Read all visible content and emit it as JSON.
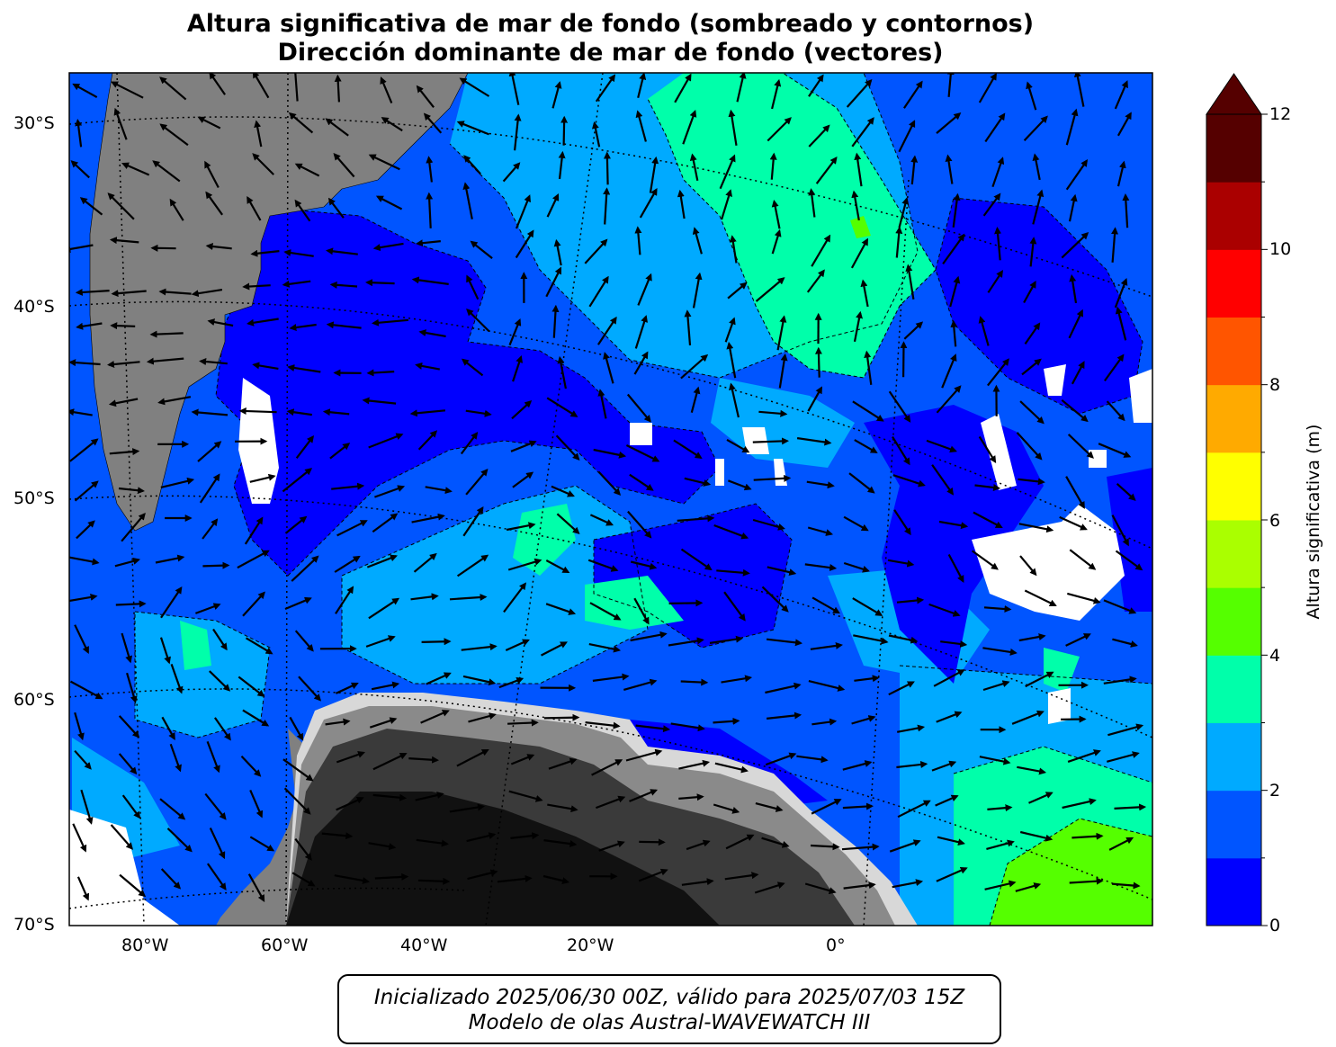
{
  "title_line1": "Altura significativa de mar de fondo (sombreado y contornos)",
  "title_line2": "Dirección dominante de mar de fondo (vectores)",
  "footer_line1": "Inicializado 2025/06/30 00Z, válido para 2025/07/03 15Z",
  "footer_line2": "Modelo de olas Austral-WAVEWATCH III",
  "colorbar": {
    "label": "Altura significativa (m)",
    "ticks": [
      "0",
      "2",
      "4",
      "6",
      "8",
      "10",
      "12"
    ],
    "levels": [
      0,
      1,
      2,
      3,
      4,
      5,
      6,
      7,
      8,
      9,
      10,
      11,
      12
    ],
    "colors": [
      "#0000ff",
      "#0055ff",
      "#00aaff",
      "#00ffaa",
      "#55ff00",
      "#aaff00",
      "#ffff00",
      "#ffaa00",
      "#ff5500",
      "#ff0000",
      "#aa0000",
      "#550000"
    ],
    "extend": "max"
  },
  "axes": {
    "lon_labels": [
      "80°W",
      "60°W",
      "40°W",
      "20°W",
      "0°"
    ],
    "lat_labels": [
      "30°S",
      "40°S",
      "50°S",
      "60°S",
      "70°S"
    ]
  },
  "map_colors": {
    "land": "#808080",
    "ice_dark": "#111111",
    "no_data": "#ffffff"
  }
}
